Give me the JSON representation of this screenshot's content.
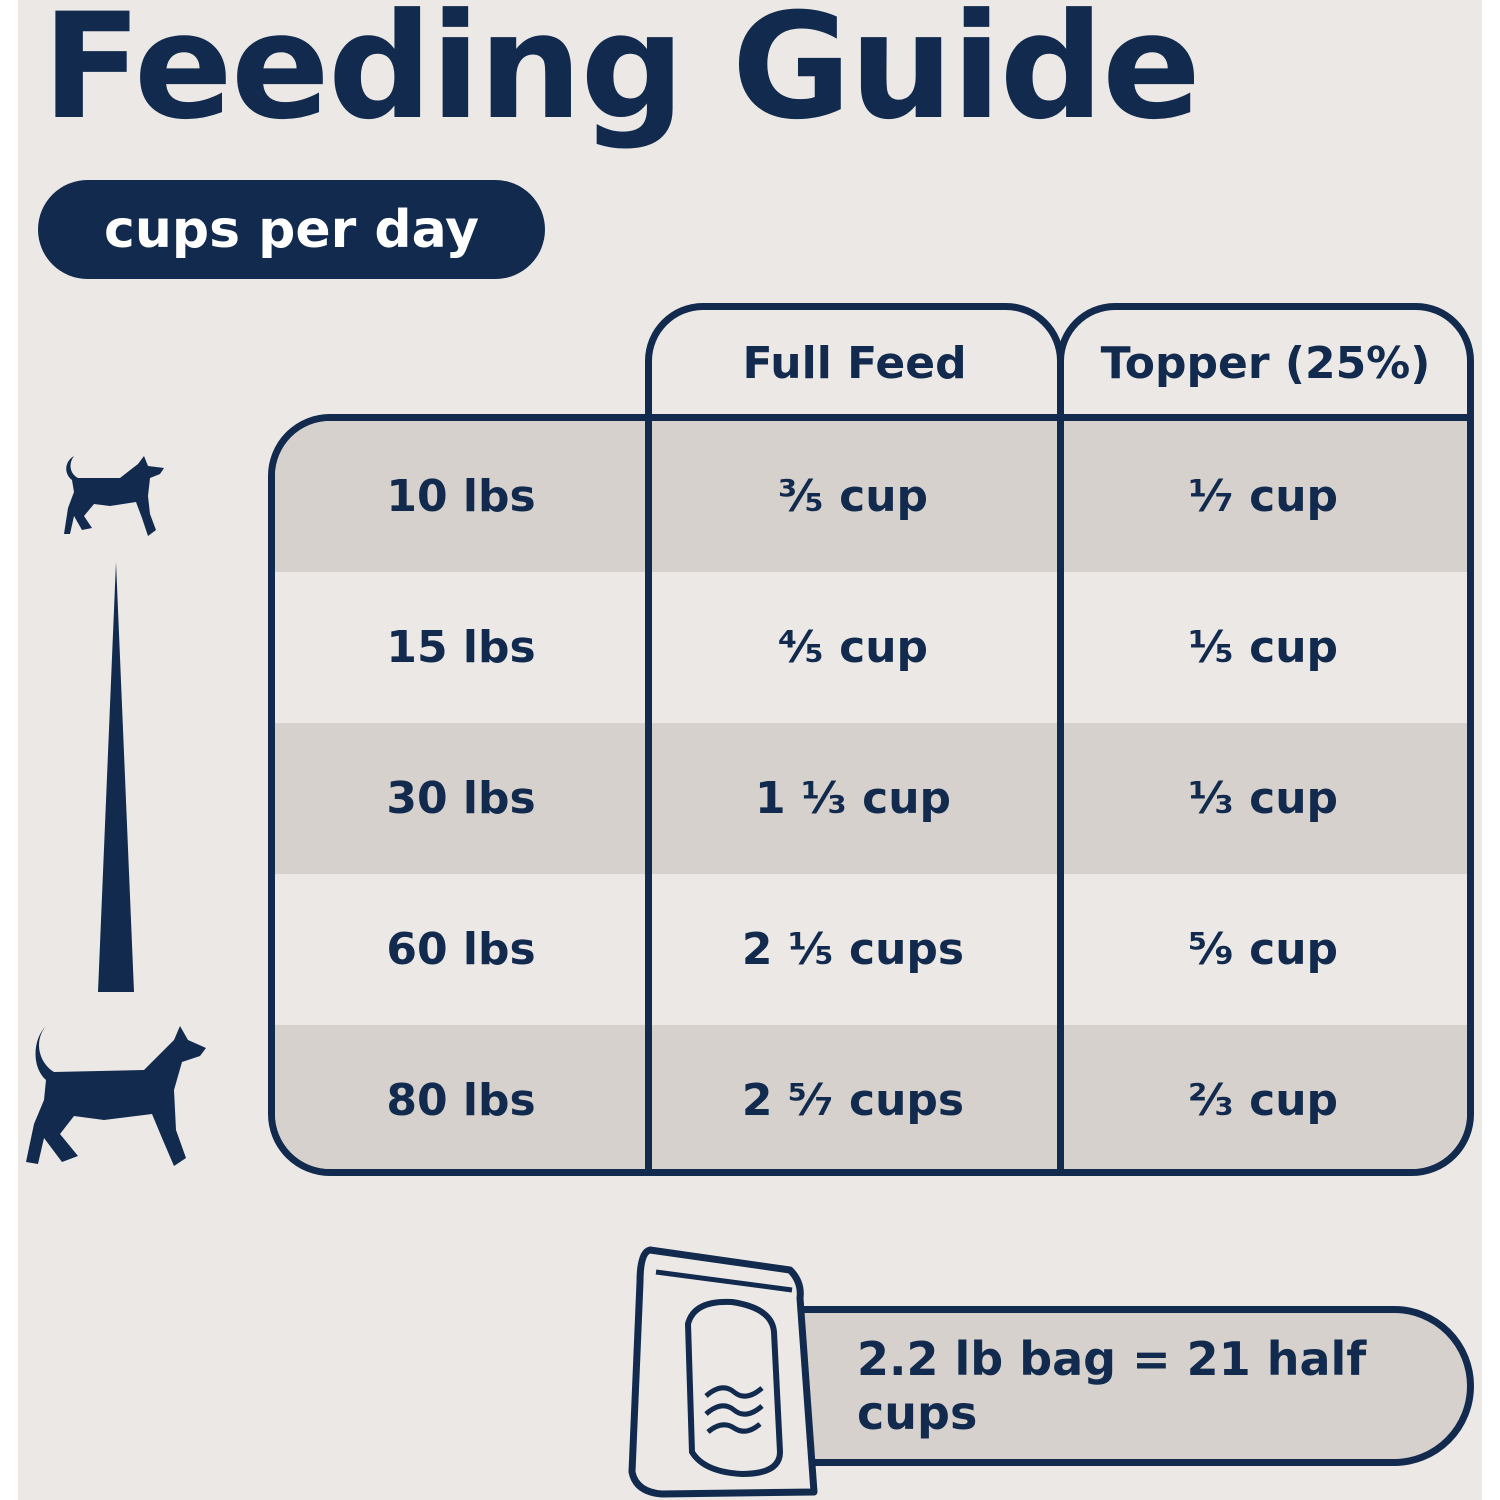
{
  "title": "Feeding Guide",
  "subtitle_pill": "cups per day",
  "colors": {
    "navy": "#112a4d",
    "background": "#ebe8e5",
    "row_shade": "#d6d1cc"
  },
  "table": {
    "headers": [
      "Full Feed",
      "Topper (25%)"
    ],
    "rows": [
      {
        "weight": "10 lbs",
        "full_feed": "³⁄₅ cup",
        "topper": "¹⁄₇ cup"
      },
      {
        "weight": "15 lbs",
        "full_feed": "⁴⁄₅ cup",
        "topper": "¹⁄₅ cup"
      },
      {
        "weight": "30 lbs",
        "full_feed": "1 ¹⁄₃ cup",
        "topper": "¹⁄₃ cup"
      },
      {
        "weight": "60 lbs",
        "full_feed": "2 ¹⁄₅ cups",
        "topper": "⁵⁄₉ cup"
      },
      {
        "weight": "80 lbs",
        "full_feed": "2 ⁵⁄₇ cups",
        "topper": "²⁄₃ cup"
      }
    ]
  },
  "icons": [
    "small-dog-icon",
    "size-scale-wedge-icon",
    "large-dog-icon",
    "food-bag-icon"
  ],
  "bag_note": "2.2 lb bag = 21 half cups"
}
